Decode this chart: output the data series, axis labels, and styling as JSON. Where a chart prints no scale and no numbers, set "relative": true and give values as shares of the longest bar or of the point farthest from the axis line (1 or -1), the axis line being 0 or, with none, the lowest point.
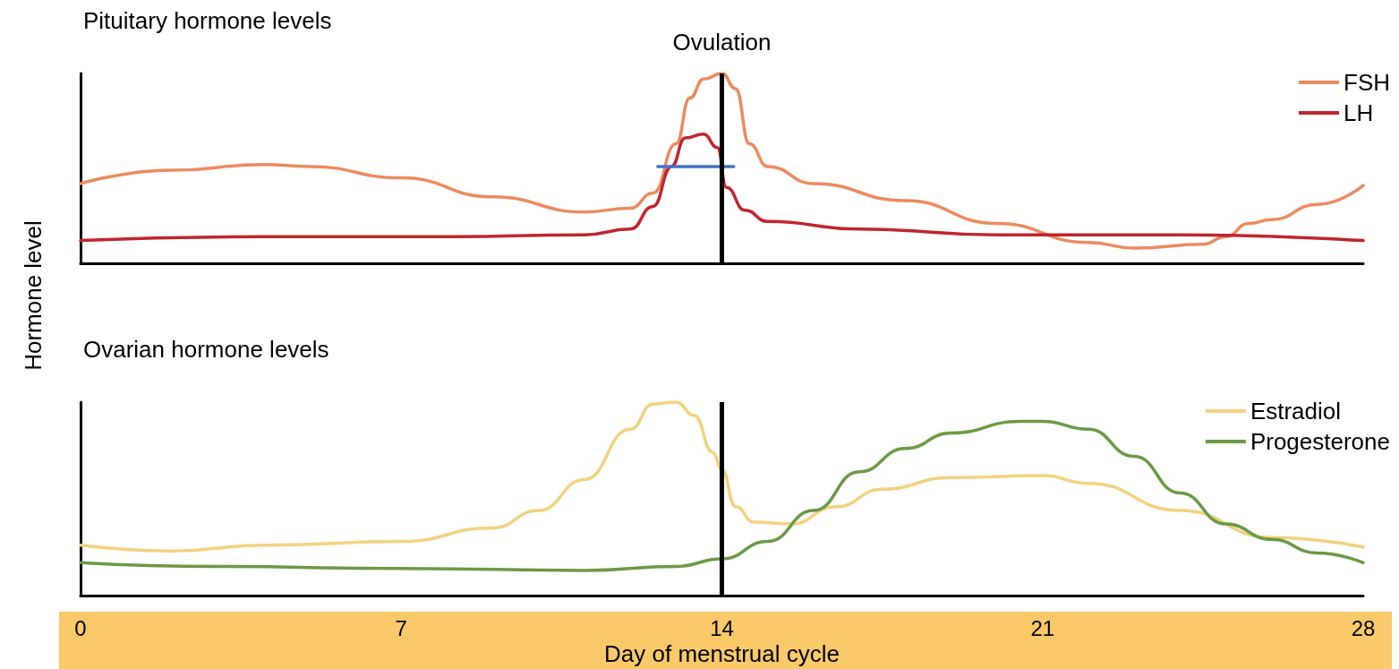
{
  "chart_data": [
    {
      "type": "line",
      "title": "Pituitary hormone levels",
      "ylabel": "Hormone level",
      "relative": true,
      "xlim": [
        0,
        28
      ],
      "xticks": [
        0,
        7,
        14,
        21,
        28
      ],
      "tick_labels": false,
      "grid": false,
      "legend": "top right",
      "marker": "none",
      "line_style": "solid",
      "ref_lines": [
        {
          "axis": "x",
          "value": 14,
          "label": "Ovulation",
          "color": "#000000"
        }
      ],
      "series": [
        {
          "name": "FSH",
          "color": "#ec8a5e",
          "x": [
            0,
            2,
            4,
            5,
            7,
            9,
            11,
            12,
            12.5,
            13,
            13.3,
            13.6,
            14,
            14.3,
            14.6,
            15,
            16,
            18,
            20,
            22,
            23,
            24.5,
            25,
            25.5,
            26,
            27,
            28
          ],
          "values": [
            0.42,
            0.49,
            0.52,
            0.51,
            0.45,
            0.35,
            0.27,
            0.29,
            0.37,
            0.63,
            0.87,
            0.97,
            1,
            0.92,
            0.63,
            0.51,
            0.42,
            0.33,
            0.21,
            0.11,
            0.08,
            0.1,
            0.14,
            0.21,
            0.23,
            0.31,
            0.41
          ]
        },
        {
          "name": "LH",
          "color": "#c0252f",
          "x": [
            0,
            4,
            8,
            11,
            12,
            12.5,
            12.9,
            13.2,
            13.6,
            13.9,
            14.1,
            14.5,
            15,
            17,
            20,
            24,
            28
          ],
          "values": [
            0.12,
            0.14,
            0.14,
            0.15,
            0.18,
            0.3,
            0.51,
            0.66,
            0.68,
            0.61,
            0.4,
            0.28,
            0.22,
            0.18,
            0.15,
            0.15,
            0.12
          ]
        },
        {
          "color": "#4472c4",
          "x": [
            12.6,
            14.26
          ],
          "values": [
            0.51,
            0.51
          ]
        }
      ]
    },
    {
      "type": "line",
      "title": "Ovarian hormone levels",
      "xlabel": "Day of menstrual cycle",
      "relative": true,
      "xlim": [
        0,
        28
      ],
      "xticks": [
        0,
        7,
        14,
        21,
        28
      ],
      "tick_labels": "x",
      "grid": false,
      "legend": "top right",
      "marker": "none",
      "line_style": "solid",
      "ref_lines": [
        {
          "axis": "x",
          "value": 14,
          "color": "#000000"
        }
      ],
      "series": [
        {
          "name": "Estradiol",
          "color": "#f3d27f",
          "x": [
            0,
            2,
            4,
            7,
            9,
            10,
            11,
            12,
            12.5,
            13,
            13.4,
            13.8,
            14,
            14.3,
            14.7,
            15.5,
            16.5,
            17.5,
            19,
            21,
            22,
            24,
            26,
            28
          ],
          "values": [
            0.26,
            0.23,
            0.26,
            0.28,
            0.35,
            0.44,
            0.6,
            0.86,
            0.99,
            1,
            0.93,
            0.74,
            0.65,
            0.46,
            0.38,
            0.37,
            0.46,
            0.55,
            0.61,
            0.62,
            0.58,
            0.44,
            0.3,
            0.25
          ]
        },
        {
          "name": "Progesterone",
          "color": "#6a9a45",
          "x": [
            0,
            3,
            7,
            11,
            13,
            14,
            15,
            16,
            17,
            18,
            19,
            20.5,
            21,
            22,
            23,
            24,
            25,
            26,
            27,
            28
          ],
          "values": [
            0.17,
            0.15,
            0.14,
            0.13,
            0.15,
            0.19,
            0.28,
            0.44,
            0.64,
            0.76,
            0.84,
            0.9,
            0.9,
            0.86,
            0.72,
            0.53,
            0.37,
            0.29,
            0.22,
            0.17
          ]
        }
      ]
    }
  ]
}
